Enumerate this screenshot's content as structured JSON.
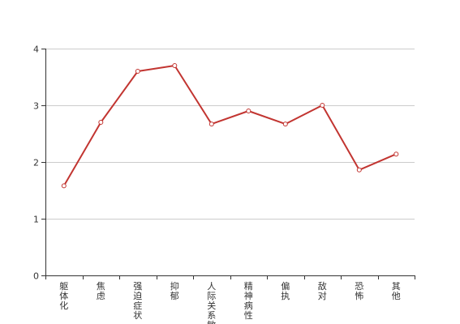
{
  "chart_data": {
    "type": "line",
    "title": "",
    "xlabel": "",
    "ylabel": "",
    "categories": [
      "躯体化",
      "焦虑",
      "强迫症状",
      "抑郁",
      "人际关系敏感",
      "精神病性",
      "偏执",
      "敌对",
      "恐怖",
      "其他"
    ],
    "series": [
      {
        "values": [
          1.58,
          2.7,
          3.6,
          3.7,
          2.67,
          2.9,
          2.67,
          3.0,
          1.86,
          2.14
        ]
      }
    ],
    "ylim": [
      0,
      4
    ],
    "yticks": [
      0,
      1,
      2,
      3,
      4
    ],
    "grid": "horizontal",
    "legend": "none",
    "colors": {
      "line": "#c23531",
      "grid": "#cccccc",
      "axis": "#333333"
    }
  }
}
